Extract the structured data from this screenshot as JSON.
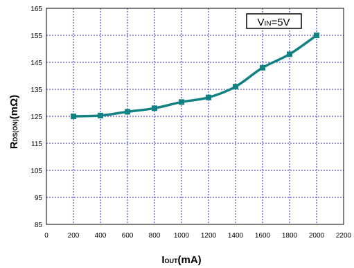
{
  "chart_data": {
    "type": "line",
    "x": [
      200,
      400,
      600,
      800,
      1000,
      1200,
      1400,
      1600,
      1800,
      2000
    ],
    "series": [
      {
        "values": [
          125,
          125.3,
          126.7,
          128,
          130.3,
          132,
          136,
          143,
          148,
          155
        ]
      }
    ],
    "xlim": [
      0,
      2200
    ],
    "ylim": [
      85,
      165
    ],
    "xticks": [
      0,
      200,
      400,
      600,
      800,
      1000,
      1200,
      1400,
      1600,
      1800,
      2000,
      2200
    ],
    "yticks": [
      85,
      95,
      105,
      115,
      125,
      135,
      145,
      155,
      165
    ],
    "xlabel": {
      "main": "I",
      "sub": "OUT",
      "rest": "(mA)"
    },
    "ylabel": {
      "main": "R",
      "sub": "DS(ON)",
      "rest": "(mΩ)"
    },
    "annotation": {
      "main": "V",
      "sub": "IN",
      "rest": "=5V"
    },
    "grid": true,
    "colors": {
      "line": "#138181",
      "grid": "#2a2acc",
      "axis": "#000000"
    }
  }
}
